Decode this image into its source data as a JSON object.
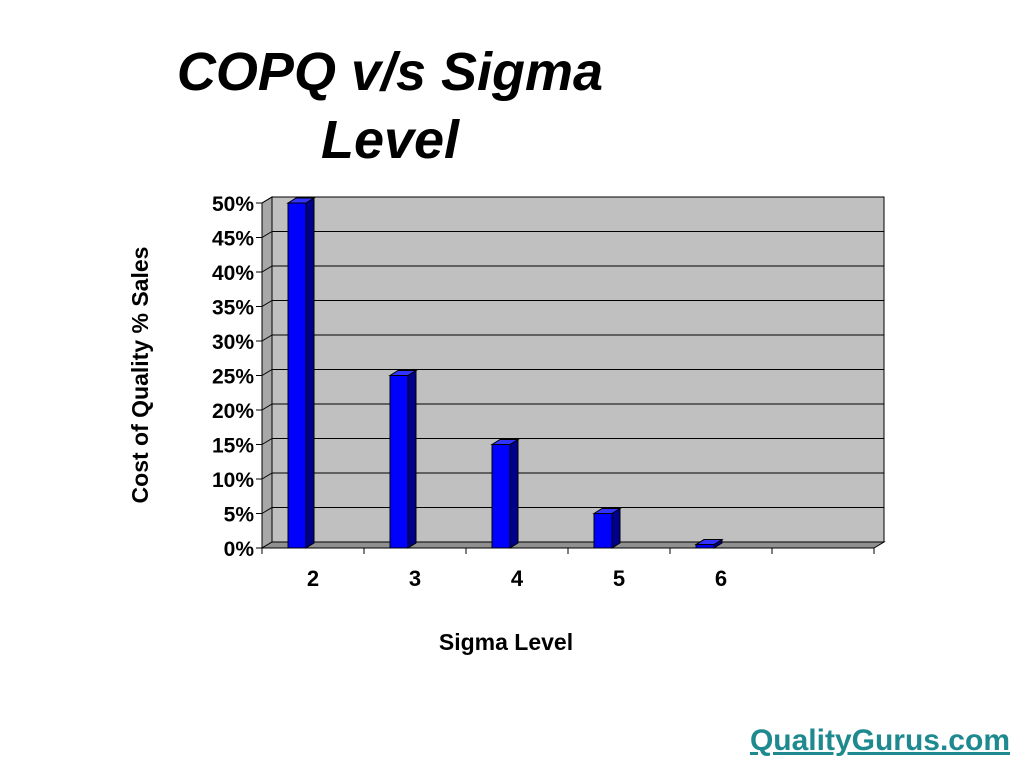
{
  "slide": {
    "title_line1": "COPQ v/s Sigma",
    "title_line2": "Level",
    "brand_link": "QualityGurus.com"
  },
  "colors": {
    "plot_background": "#c0c0c0",
    "bar_front": "#0000ff",
    "bar_side": "#00008b",
    "bar_top": "#3333ff",
    "gridline": "#000000",
    "brand_link": "#1e8a8f"
  },
  "chart_data": {
    "type": "bar",
    "style": "3d-column",
    "categories": [
      "2",
      "3",
      "4",
      "5",
      "6"
    ],
    "series": [
      {
        "values": [
          50,
          25,
          15,
          5,
          0.5
        ]
      }
    ],
    "title": "COPQ v/s Sigma Level",
    "xlabel": "Sigma Level",
    "ylabel": "Cost of Quality % Sales",
    "ylim": [
      0,
      50
    ],
    "yticks": [
      "0%",
      "5%",
      "10%",
      "15%",
      "20%",
      "25%",
      "30%",
      "35%",
      "40%",
      "45%",
      "50%"
    ],
    "grid": true,
    "legend": "none"
  }
}
